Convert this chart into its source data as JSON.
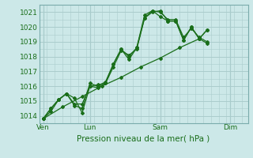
{
  "bg_color": "#cce8e8",
  "grid_color": "#aacccc",
  "line_color": "#1a6e1a",
  "marker_color": "#1a6e1a",
  "xlabel": "Pression niveau de la mer( hPa )",
  "xlabel_fontsize": 7.5,
  "ylim": [
    1013.5,
    1021.5
  ],
  "yticks": [
    1014,
    1015,
    1016,
    1017,
    1018,
    1019,
    1020,
    1021
  ],
  "tick_fontsize": 6.5,
  "xtick_labels": [
    "Ven",
    "Lun",
    "Sam",
    "Dim"
  ],
  "xtick_positions": [
    0,
    48,
    120,
    192
  ],
  "vline_positions": [
    0,
    48,
    120,
    192
  ],
  "series": [
    [
      1013.8,
      1014.3,
      1015.1,
      1015.5,
      1015.2,
      1014.2,
      1016.0,
      1015.9,
      1016.2,
      1017.3,
      1018.4,
      1018.1,
      1018.5,
      1020.6,
      1021.0,
      1021.1,
      1020.4,
      1020.4,
      1019.1,
      1020.0,
      1019.2,
      1019.8
    ],
    [
      1013.8,
      1014.5,
      1015.1,
      1015.5,
      1014.7,
      1014.5,
      1016.2,
      1016.0,
      1016.3,
      1017.5,
      1018.5,
      1017.8,
      1018.6,
      1020.8,
      1021.1,
      1020.7,
      1020.4,
      1020.4,
      1019.1,
      1020.0,
      1019.2,
      1018.9
    ],
    [
      1013.8,
      1014.5,
      1015.1,
      1015.5,
      1014.8,
      1014.8,
      1016.0,
      1016.1,
      1016.2,
      1017.5,
      1018.5,
      1018.0,
      1018.6,
      1020.6,
      1021.1,
      1021.0,
      1020.5,
      1020.5,
      1019.3,
      1019.9,
      1019.3,
      1019.0
    ],
    [
      1013.8,
      1014.6,
      1015.3,
      1016.0,
      1016.6,
      1017.3,
      1017.9,
      1018.6,
      1019.2,
      1019.8
    ]
  ],
  "series_x": [
    [
      0,
      8,
      16,
      24,
      32,
      40,
      48,
      56,
      64,
      72,
      80,
      88,
      96,
      104,
      112,
      120,
      128,
      136,
      144,
      152,
      160,
      168
    ],
    [
      0,
      8,
      16,
      24,
      32,
      40,
      48,
      56,
      64,
      72,
      80,
      88,
      96,
      104,
      112,
      120,
      128,
      136,
      144,
      152,
      160,
      168
    ],
    [
      0,
      8,
      16,
      24,
      32,
      40,
      48,
      56,
      64,
      72,
      80,
      88,
      96,
      104,
      112,
      120,
      128,
      136,
      144,
      152,
      160,
      168
    ],
    [
      0,
      20,
      40,
      60,
      80,
      100,
      120,
      140,
      160,
      168
    ]
  ],
  "xlim": [
    -4,
    210
  ]
}
